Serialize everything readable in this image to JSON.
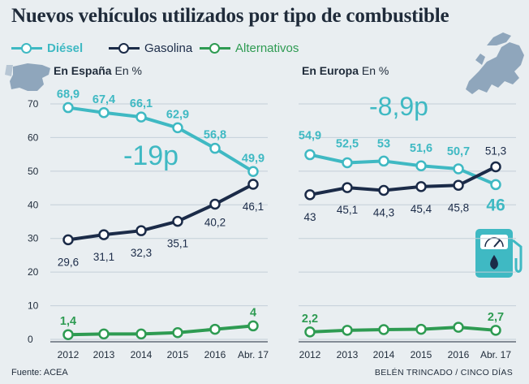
{
  "title": "Nuevos vehículos utilizados por tipo de combustible",
  "legend": [
    {
      "label": "Diésel",
      "color": "#3fb9c3"
    },
    {
      "label": "Gasolina",
      "color": "#1b2b48"
    },
    {
      "label": "Alternativos",
      "color": "#2e9b52"
    }
  ],
  "source": "Fuente: ACEA",
  "credit": "BELÉN TRINCADO / CINCO DÍAS",
  "chart_data": [
    {
      "type": "line",
      "title_bold": "En España",
      "title_rest": "En %",
      "categories": [
        "2012",
        "2013",
        "2014",
        "2015",
        "2016",
        "Abr. 17"
      ],
      "ylim": [
        0,
        70
      ],
      "yticks": [
        "0",
        "10",
        "20",
        "30",
        "40",
        "50",
        "60",
        "70"
      ],
      "series": [
        {
          "name": "Diésel",
          "values": [
            68.9,
            67.4,
            66.1,
            62.9,
            56.8,
            49.9
          ],
          "labels": [
            "68,9",
            "67,4",
            "66,1",
            "62,9",
            "56,8",
            "49,9"
          ]
        },
        {
          "name": "Gasolina",
          "values": [
            29.6,
            31.1,
            32.3,
            35.1,
            40.2,
            46.1
          ],
          "labels": [
            "29,6",
            "31,1",
            "32,3",
            "35,1",
            "40,2",
            "46,1"
          ]
        },
        {
          "name": "Alternativos",
          "values": [
            1.4,
            1.6,
            1.6,
            2.0,
            3.0,
            4.0
          ],
          "labels": [
            "1,4",
            "",
            "",
            "",
            "",
            "4"
          ]
        }
      ],
      "annotation": "-19p"
    },
    {
      "type": "line",
      "title_bold": "En Europa",
      "title_rest": "En %",
      "categories": [
        "2012",
        "2013",
        "2014",
        "2015",
        "2016",
        "Abr. 17"
      ],
      "ylim": [
        0,
        70
      ],
      "series": [
        {
          "name": "Diésel",
          "values": [
            54.9,
            52.5,
            53.0,
            51.6,
            50.7,
            46.0
          ],
          "labels": [
            "54,9",
            "52,5",
            "53",
            "51,6",
            "50,7",
            "46"
          ]
        },
        {
          "name": "Gasolina",
          "values": [
            43.0,
            45.1,
            44.3,
            45.4,
            45.8,
            51.3
          ],
          "labels": [
            "43",
            "45,1",
            "44,3",
            "45,4",
            "45,8",
            "51,3"
          ]
        },
        {
          "name": "Alternativos",
          "values": [
            2.2,
            2.7,
            2.9,
            3.0,
            3.6,
            2.7
          ],
          "labels": [
            "2,2",
            "",
            "",
            "",
            "",
            "2,7"
          ]
        }
      ],
      "annotation": "-8,9p"
    }
  ]
}
